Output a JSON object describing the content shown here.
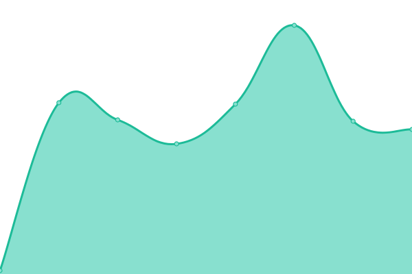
{
  "chart_data": {
    "type": "area",
    "title": "",
    "xlabel": "",
    "ylabel": "",
    "x": [
      0,
      1,
      2,
      3,
      4,
      5,
      6,
      7
    ],
    "values": [
      5,
      250,
      225,
      190,
      248,
      363,
      223,
      211
    ],
    "ylim": [
      0,
      400
    ],
    "grid": false,
    "legend": "none",
    "curve": "smooth",
    "colors": {
      "line": "#1dbb98",
      "fill": "#88e0cf",
      "point_fill": "#88e0cf",
      "point_stroke": "#1dbb98"
    }
  }
}
